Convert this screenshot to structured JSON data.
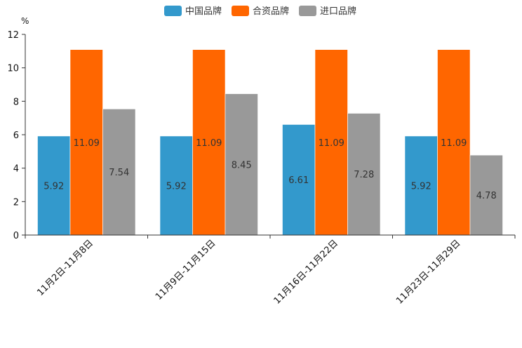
{
  "chart_data": {
    "type": "bar",
    "title": "",
    "xlabel": "",
    "ylabel": "%",
    "ylim": [
      0,
      12
    ],
    "yticks": [
      "0",
      "2",
      "4",
      "6",
      "8",
      "10",
      "12"
    ],
    "grid": false,
    "legend_position": "top-center",
    "categories": [
      "11月2日-11月8日",
      "11月9日-11月15日",
      "11月16日-11月22日",
      "11月23日-11月29日"
    ],
    "series": [
      {
        "name": "中国品牌",
        "color": "#3399CC",
        "values": [
          5.92,
          5.92,
          6.61,
          5.92
        ],
        "labels": [
          "5.92",
          "5.92",
          "6.61",
          "5.92"
        ]
      },
      {
        "name": "合资品牌",
        "color": "#FF6600",
        "values": [
          11.09,
          11.09,
          11.09,
          11.09
        ],
        "labels": [
          "11.09",
          "11.09",
          "11.09",
          "11.09"
        ]
      },
      {
        "name": "进口品牌",
        "color": "#999999",
        "values": [
          7.54,
          8.45,
          7.28,
          4.78
        ],
        "labels": [
          "7.54",
          "8.45",
          "7.28",
          "4.78"
        ]
      }
    ]
  }
}
